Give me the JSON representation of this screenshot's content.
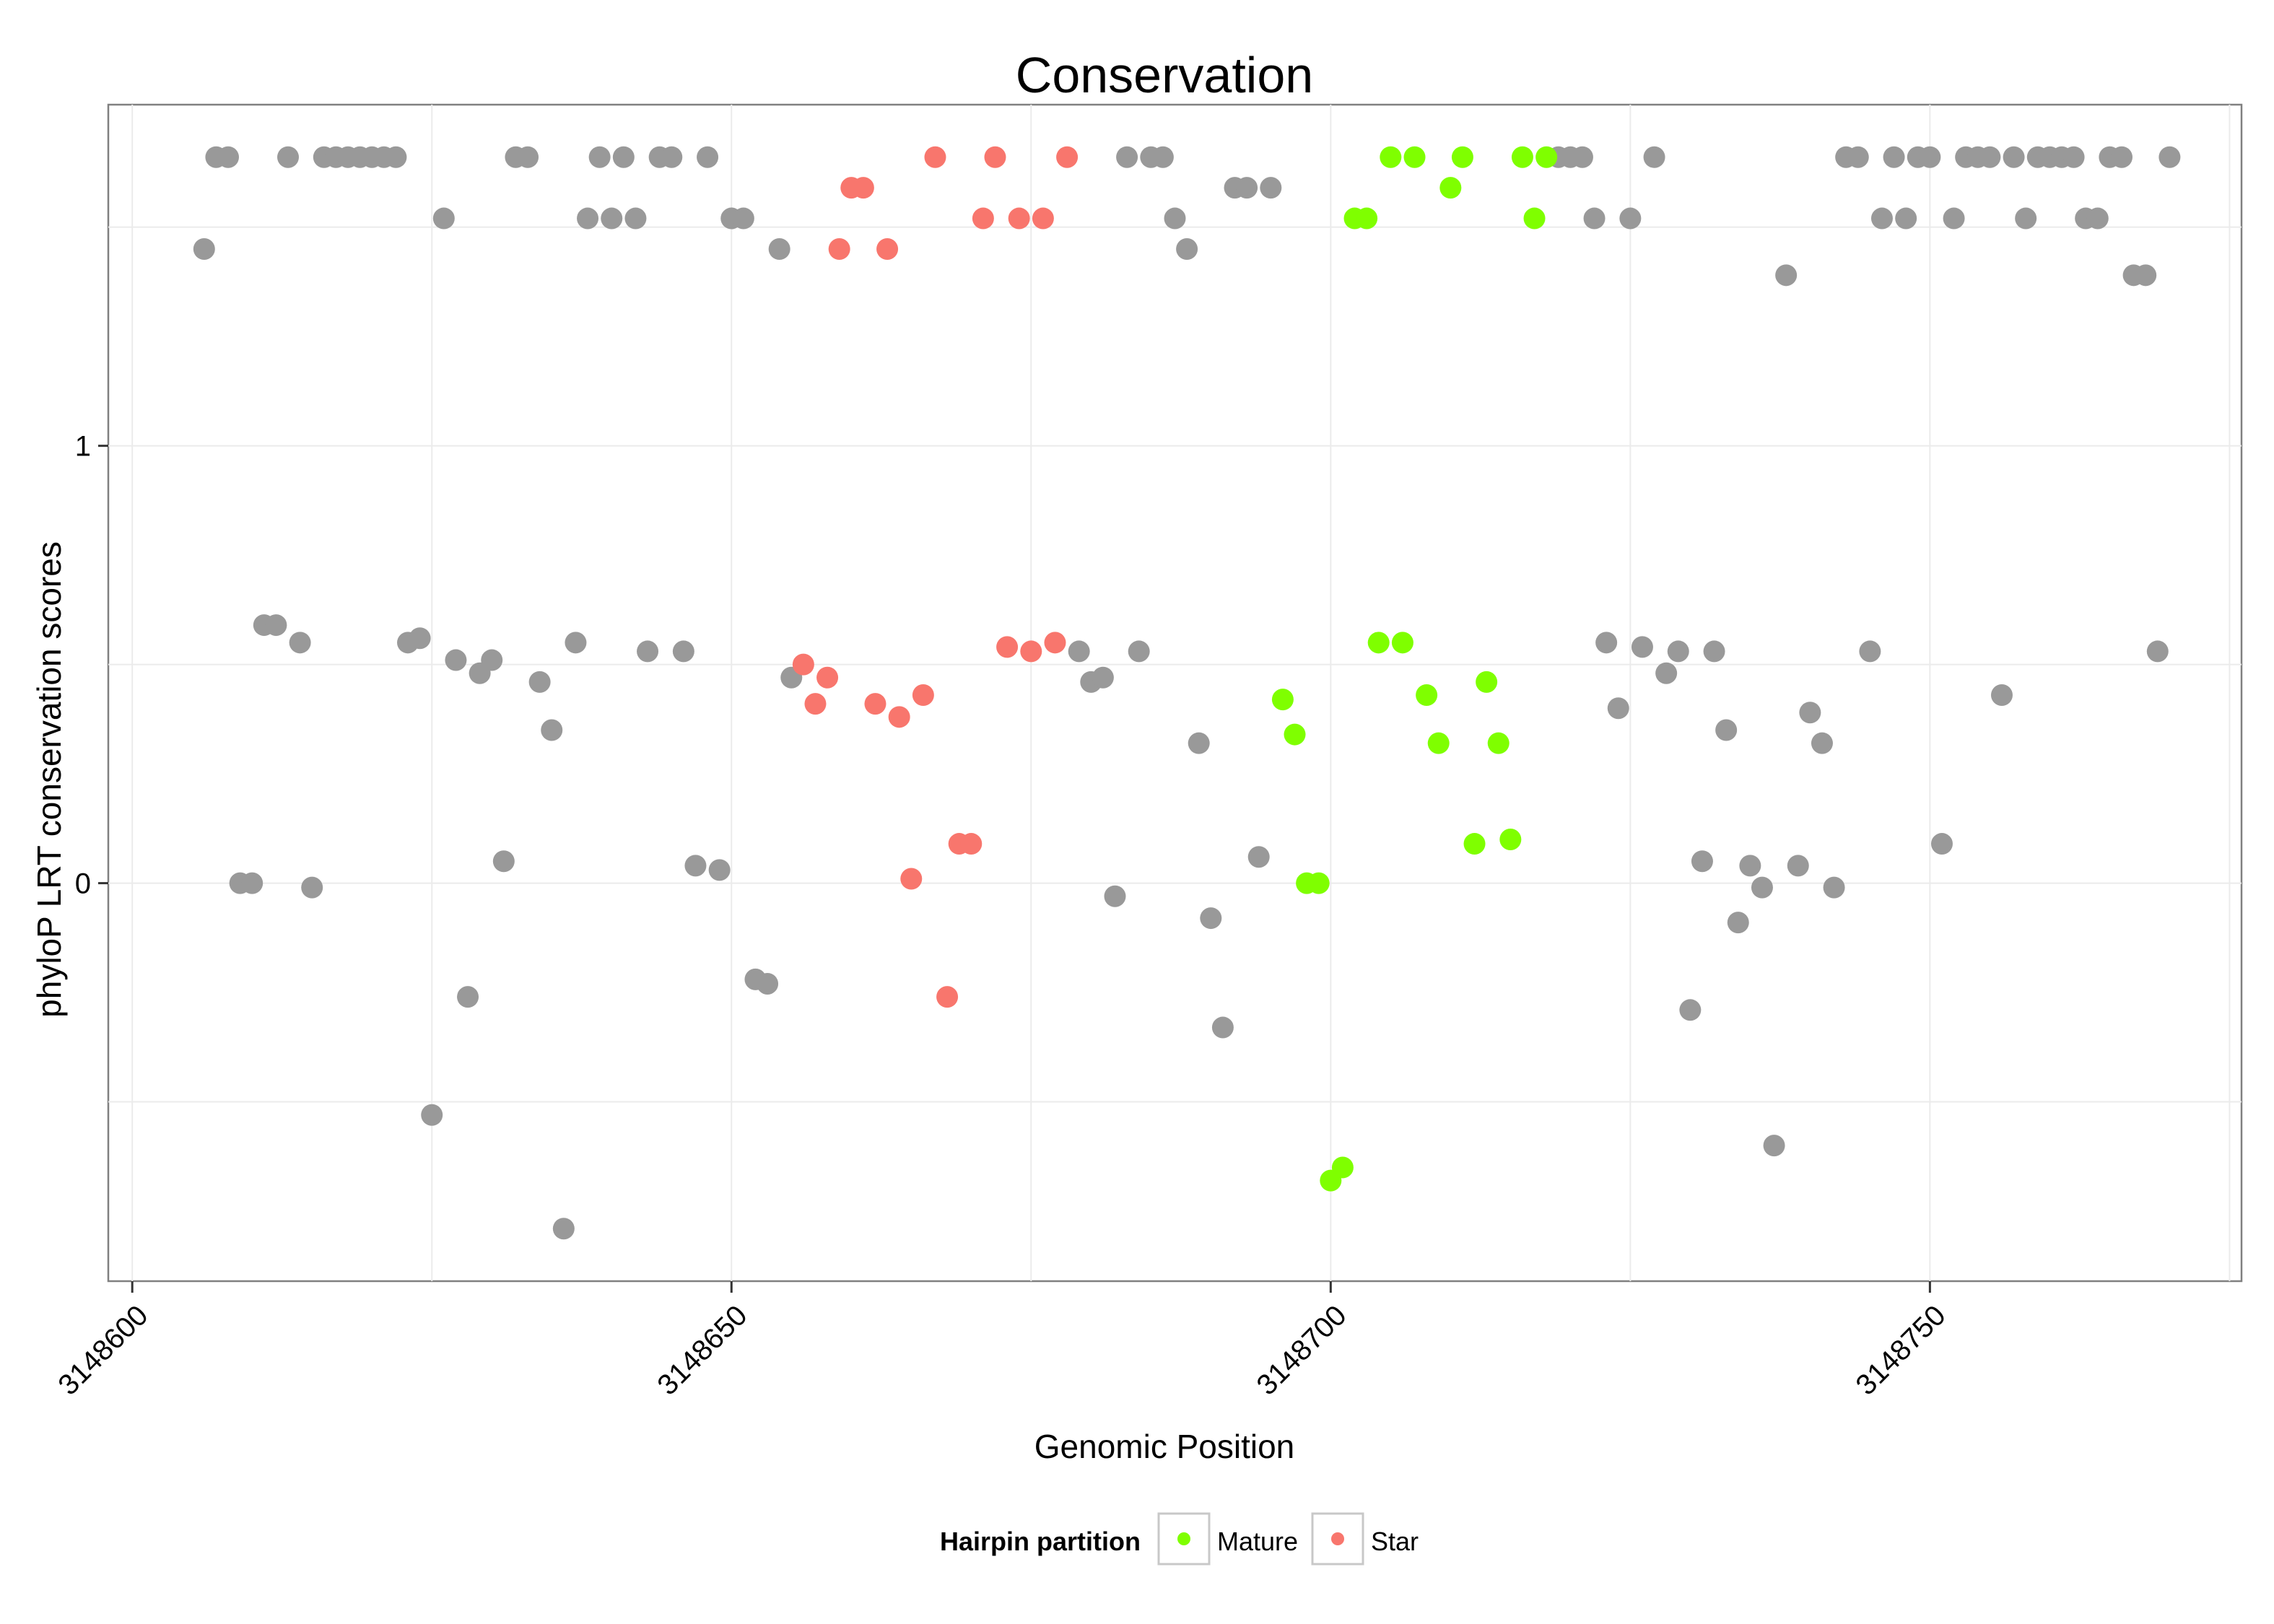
{
  "chart_data": {
    "type": "scatter",
    "title": "Conservation",
    "xlabel": "Genomic Position",
    "ylabel": "phyloP LRT conservation scores",
    "xlim": [
      3148598,
      3148776
    ],
    "ylim": [
      -0.91,
      1.78
    ],
    "x_ticks": [
      3148600,
      3148650,
      3148700,
      3148750
    ],
    "x_tick_labels": [
      "3148600",
      "3148650",
      "3148700",
      "3148750"
    ],
    "y_ticks": [
      0,
      1
    ],
    "y_tick_labels": [
      "0",
      "1"
    ],
    "grid": true,
    "legend": {
      "title": "Hairpin partition",
      "position": "bottom",
      "entries": [
        {
          "label": "Mature",
          "color": "#7fff00"
        },
        {
          "label": "Star",
          "color": "#f8766d"
        }
      ]
    },
    "colors": {
      "Other": "#999999",
      "Mature": "#7fff00",
      "Star": "#f8766d"
    },
    "series": [
      {
        "name": "Other",
        "color": "#999999",
        "points": [
          [
            3148606,
            1.45
          ],
          [
            3148607,
            1.66
          ],
          [
            3148608,
            1.66
          ],
          [
            3148609,
            0.0
          ],
          [
            3148610,
            0.0
          ],
          [
            3148611,
            0.59
          ],
          [
            3148612,
            0.59
          ],
          [
            3148613,
            1.66
          ],
          [
            3148614,
            0.55
          ],
          [
            3148615,
            -0.01
          ],
          [
            3148616,
            1.66
          ],
          [
            3148617,
            1.66
          ],
          [
            3148618,
            1.66
          ],
          [
            3148619,
            1.66
          ],
          [
            3148620,
            1.66
          ],
          [
            3148621,
            1.66
          ],
          [
            3148622,
            1.66
          ],
          [
            3148623,
            0.55
          ],
          [
            3148624,
            0.56
          ],
          [
            3148625,
            -0.53
          ],
          [
            3148626,
            1.52
          ],
          [
            3148627,
            0.51
          ],
          [
            3148628,
            -0.26
          ],
          [
            3148629,
            0.48
          ],
          [
            3148630,
            0.51
          ],
          [
            3148631,
            0.05
          ],
          [
            3148632,
            1.66
          ],
          [
            3148633,
            1.66
          ],
          [
            3148634,
            0.46
          ],
          [
            3148635,
            0.35
          ],
          [
            3148636,
            -0.79
          ],
          [
            3148637,
            0.55
          ],
          [
            3148638,
            1.52
          ],
          [
            3148639,
            1.66
          ],
          [
            3148640,
            1.52
          ],
          [
            3148641,
            1.66
          ],
          [
            3148642,
            1.52
          ],
          [
            3148643,
            0.53
          ],
          [
            3148644,
            1.66
          ],
          [
            3148645,
            1.66
          ],
          [
            3148646,
            0.53
          ],
          [
            3148647,
            0.04
          ],
          [
            3148648,
            1.66
          ],
          [
            3148649,
            0.03
          ],
          [
            3148650,
            1.52
          ],
          [
            3148651,
            1.52
          ],
          [
            3148652,
            -0.22
          ],
          [
            3148653,
            -0.23
          ],
          [
            3148654,
            1.45
          ],
          [
            3148655,
            0.47
          ],
          [
            3148679,
            0.53
          ],
          [
            3148680,
            0.46
          ],
          [
            3148681,
            0.47
          ],
          [
            3148682,
            -0.03
          ],
          [
            3148683,
            1.66
          ],
          [
            3148684,
            0.53
          ],
          [
            3148685,
            1.66
          ],
          [
            3148686,
            1.66
          ],
          [
            3148687,
            1.52
          ],
          [
            3148688,
            1.45
          ],
          [
            3148689,
            0.32
          ],
          [
            3148690,
            -0.08
          ],
          [
            3148691,
            -0.33
          ],
          [
            3148692,
            1.59
          ],
          [
            3148693,
            1.59
          ],
          [
            3148694,
            0.06
          ],
          [
            3148695,
            1.59
          ],
          [
            3148719,
            1.66
          ],
          [
            3148720,
            1.66
          ],
          [
            3148721,
            1.66
          ],
          [
            3148722,
            1.52
          ],
          [
            3148723,
            0.55
          ],
          [
            3148724,
            0.4
          ],
          [
            3148725,
            1.52
          ],
          [
            3148726,
            0.54
          ],
          [
            3148727,
            1.66
          ],
          [
            3148728,
            0.48
          ],
          [
            3148729,
            0.53
          ],
          [
            3148730,
            -0.29
          ],
          [
            3148731,
            0.05
          ],
          [
            3148732,
            0.53
          ],
          [
            3148733,
            0.35
          ],
          [
            3148734,
            -0.09
          ],
          [
            3148735,
            0.04
          ],
          [
            3148736,
            -0.01
          ],
          [
            3148737,
            -0.6
          ],
          [
            3148738,
            1.39
          ],
          [
            3148739,
            0.04
          ],
          [
            3148740,
            0.39
          ],
          [
            3148741,
            0.32
          ],
          [
            3148742,
            -0.01
          ],
          [
            3148743,
            1.66
          ],
          [
            3148744,
            1.66
          ],
          [
            3148745,
            0.53
          ],
          [
            3148746,
            1.52
          ],
          [
            3148747,
            1.66
          ],
          [
            3148748,
            1.52
          ],
          [
            3148749,
            1.66
          ],
          [
            3148750,
            1.66
          ],
          [
            3148751,
            0.09
          ],
          [
            3148752,
            1.52
          ],
          [
            3148753,
            1.66
          ],
          [
            3148754,
            1.66
          ],
          [
            3148755,
            1.66
          ],
          [
            3148756,
            0.43
          ],
          [
            3148757,
            1.66
          ],
          [
            3148758,
            1.52
          ],
          [
            3148759,
            1.66
          ],
          [
            3148760,
            1.66
          ],
          [
            3148761,
            1.66
          ],
          [
            3148762,
            1.66
          ],
          [
            3148763,
            1.52
          ],
          [
            3148764,
            1.52
          ],
          [
            3148765,
            1.66
          ],
          [
            3148766,
            1.66
          ],
          [
            3148767,
            1.39
          ],
          [
            3148768,
            1.39
          ],
          [
            3148769,
            0.53
          ],
          [
            3148770,
            1.66
          ]
        ]
      },
      {
        "name": "Star",
        "color": "#f8766d",
        "points": [
          [
            3148656,
            0.5
          ],
          [
            3148657,
            0.41
          ],
          [
            3148658,
            0.47
          ],
          [
            3148659,
            1.45
          ],
          [
            3148660,
            1.59
          ],
          [
            3148661,
            1.59
          ],
          [
            3148662,
            0.41
          ],
          [
            3148663,
            1.45
          ],
          [
            3148664,
            0.38
          ],
          [
            3148665,
            0.01
          ],
          [
            3148666,
            0.43
          ],
          [
            3148667,
            1.66
          ],
          [
            3148668,
            -0.26
          ],
          [
            3148669,
            0.09
          ],
          [
            3148670,
            0.09
          ],
          [
            3148671,
            1.52
          ],
          [
            3148672,
            1.66
          ],
          [
            3148673,
            0.54
          ],
          [
            3148674,
            1.52
          ],
          [
            3148675,
            0.53
          ],
          [
            3148676,
            1.52
          ],
          [
            3148677,
            0.55
          ],
          [
            3148678,
            1.66
          ]
        ]
      },
      {
        "name": "Mature",
        "color": "#7fff00",
        "points": [
          [
            3148696,
            0.42
          ],
          [
            3148697,
            0.34
          ],
          [
            3148698,
            0.0
          ],
          [
            3148699,
            0.0
          ],
          [
            3148700,
            -0.68
          ],
          [
            3148701,
            -0.65
          ],
          [
            3148702,
            1.52
          ],
          [
            3148703,
            1.52
          ],
          [
            3148704,
            0.55
          ],
          [
            3148705,
            1.66
          ],
          [
            3148706,
            0.55
          ],
          [
            3148707,
            1.66
          ],
          [
            3148708,
            0.43
          ],
          [
            3148709,
            0.32
          ],
          [
            3148710,
            1.59
          ],
          [
            3148711,
            1.66
          ],
          [
            3148712,
            0.09
          ],
          [
            3148713,
            0.46
          ],
          [
            3148714,
            0.32
          ],
          [
            3148715,
            0.1
          ],
          [
            3148716,
            1.66
          ],
          [
            3148717,
            1.52
          ],
          [
            3148718,
            1.66
          ]
        ]
      }
    ]
  }
}
